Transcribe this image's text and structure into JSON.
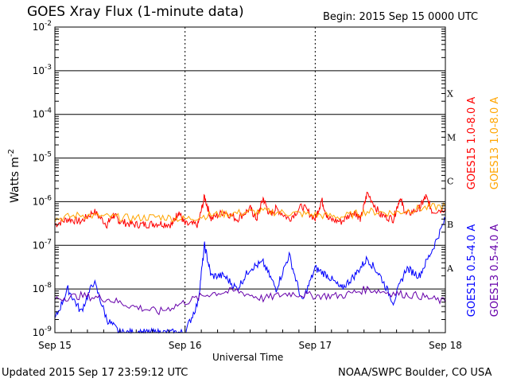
{
  "header": {
    "title": "GOES Xray Flux (1-minute data)",
    "begin": "Begin:  2015 Sep 15 0000 UTC"
  },
  "footer": {
    "updated": "Updated 2015 Sep 17 23:59:12 UTC",
    "credit": "NOAA/SWPC Boulder, CO USA"
  },
  "colors": {
    "goes15_long": "#ff0000",
    "goes13_long": "#ffa500",
    "goes15_short": "#0000ff",
    "goes13_short": "#6600aa",
    "grid": "#000000"
  },
  "chart_data": {
    "type": "line",
    "title": "GOES Xray Flux (1-minute data)",
    "xlabel": "Universal Time",
    "ylabel": "Watts m-2",
    "ylabel_main": "Watts m",
    "ylabel_exp": "-2",
    "y_scale": "log",
    "ylim": [
      1e-09,
      0.01
    ],
    "xlim": [
      "2015-09-15 00:00",
      "2015-09-18 00:00"
    ],
    "x_ticks": [
      "Sep 15",
      "Sep 16",
      "Sep 17",
      "Sep 18"
    ],
    "y_ticks": [
      {
        "value": 0.01,
        "base": "10",
        "exp": "-2"
      },
      {
        "value": 0.001,
        "base": "10",
        "exp": "-3"
      },
      {
        "value": 0.0001,
        "base": "10",
        "exp": "-4"
      },
      {
        "value": 1e-05,
        "base": "10",
        "exp": "-5"
      },
      {
        "value": 1e-06,
        "base": "10",
        "exp": "-6"
      },
      {
        "value": 1e-07,
        "base": "10",
        "exp": "-7"
      },
      {
        "value": 1e-08,
        "base": "10",
        "exp": "-8"
      },
      {
        "value": 1e-09,
        "base": "10",
        "exp": "-9"
      }
    ],
    "flare_classes": [
      {
        "label": "X",
        "value": 0.0003
      },
      {
        "label": "M",
        "value": 3e-05
      },
      {
        "label": "C",
        "value": 3e-06
      },
      {
        "label": "B",
        "value": 3e-07
      },
      {
        "label": "A",
        "value": 3e-08
      }
    ],
    "grid": true,
    "legend_position": "right, vertical text",
    "series": [
      {
        "name": "GOES15 1.0-8.0 A",
        "color": "#ff0000",
        "x_days": [
          0,
          0.1,
          0.2,
          0.3,
          0.4,
          0.45,
          0.5,
          0.6,
          0.7,
          0.8,
          0.9,
          0.95,
          1.0,
          1.1,
          1.15,
          1.2,
          1.3,
          1.4,
          1.5,
          1.55,
          1.6,
          1.65,
          1.7,
          1.8,
          1.9,
          2.0,
          2.05,
          2.1,
          2.2,
          2.3,
          2.35,
          2.4,
          2.5,
          2.6,
          2.65,
          2.7,
          2.8,
          2.85,
          2.9,
          3.0
        ],
        "y": [
          3e-07,
          4e-07,
          3.5e-07,
          6e-07,
          3e-07,
          5e-07,
          3.5e-07,
          3e-07,
          3e-07,
          3.2e-07,
          3e-07,
          6e-07,
          3e-07,
          3e-07,
          1.3e-06,
          4e-07,
          6e-07,
          4e-07,
          7e-07,
          4e-07,
          1.2e-06,
          5e-07,
          7e-07,
          4e-07,
          8e-07,
          4e-07,
          1.1e-06,
          4e-07,
          3.5e-07,
          6e-07,
          4e-07,
          1.6e-06,
          5e-07,
          4e-07,
          1.2e-06,
          5e-07,
          7e-07,
          1.3e-06,
          6e-07,
          7e-07
        ]
      },
      {
        "name": "GOES13 1.0-8.0 A",
        "color": "#ffa500",
        "x_days": [
          0,
          0.2,
          0.4,
          0.6,
          0.8,
          1.0,
          1.2,
          1.4,
          1.6,
          1.8,
          2.0,
          2.2,
          2.4,
          2.6,
          2.8,
          3.0
        ],
        "y": [
          4e-07,
          5e-07,
          4.5e-07,
          4.2e-07,
          4.5e-07,
          4e-07,
          5e-07,
          5.5e-07,
          6e-07,
          5.5e-07,
          5e-07,
          4.5e-07,
          6e-07,
          5.5e-07,
          7e-07,
          8e-07
        ]
      },
      {
        "name": "GOES15 0.5-4.0 A",
        "color": "#0000ff",
        "x_days": [
          0,
          0.1,
          0.2,
          0.3,
          0.4,
          0.5,
          0.6,
          0.7,
          0.8,
          0.9,
          1.0,
          1.1,
          1.15,
          1.2,
          1.3,
          1.4,
          1.5,
          1.6,
          1.7,
          1.8,
          1.9,
          2.0,
          2.1,
          2.2,
          2.3,
          2.4,
          2.5,
          2.6,
          2.7,
          2.8,
          2.9,
          3.0
        ],
        "y": [
          2e-09,
          1e-08,
          3e-09,
          1.5e-08,
          2e-09,
          1e-09,
          1e-09,
          1e-09,
          1e-09,
          1e-09,
          1e-09,
          5e-09,
          1e-07,
          2e-08,
          2e-08,
          1e-08,
          3e-08,
          4e-08,
          1e-08,
          6e-08,
          5e-09,
          3e-08,
          2e-08,
          1e-08,
          2e-08,
          5e-08,
          2e-08,
          5e-09,
          3e-08,
          2e-08,
          8e-08,
          4e-07
        ]
      },
      {
        "name": "GOES13 0.5-4.0 A",
        "color": "#6600aa",
        "x_days": [
          0,
          0.2,
          0.4,
          0.6,
          0.8,
          1.0,
          1.2,
          1.4,
          1.6,
          1.8,
          2.0,
          2.2,
          2.4,
          2.6,
          2.8,
          3.0
        ],
        "y": [
          6e-09,
          7e-09,
          6e-09,
          4e-09,
          3e-09,
          5e-09,
          8e-09,
          9e-09,
          6e-09,
          8e-09,
          7e-09,
          7e-09,
          1e-08,
          8e-09,
          7e-09,
          5e-09
        ]
      }
    ]
  }
}
